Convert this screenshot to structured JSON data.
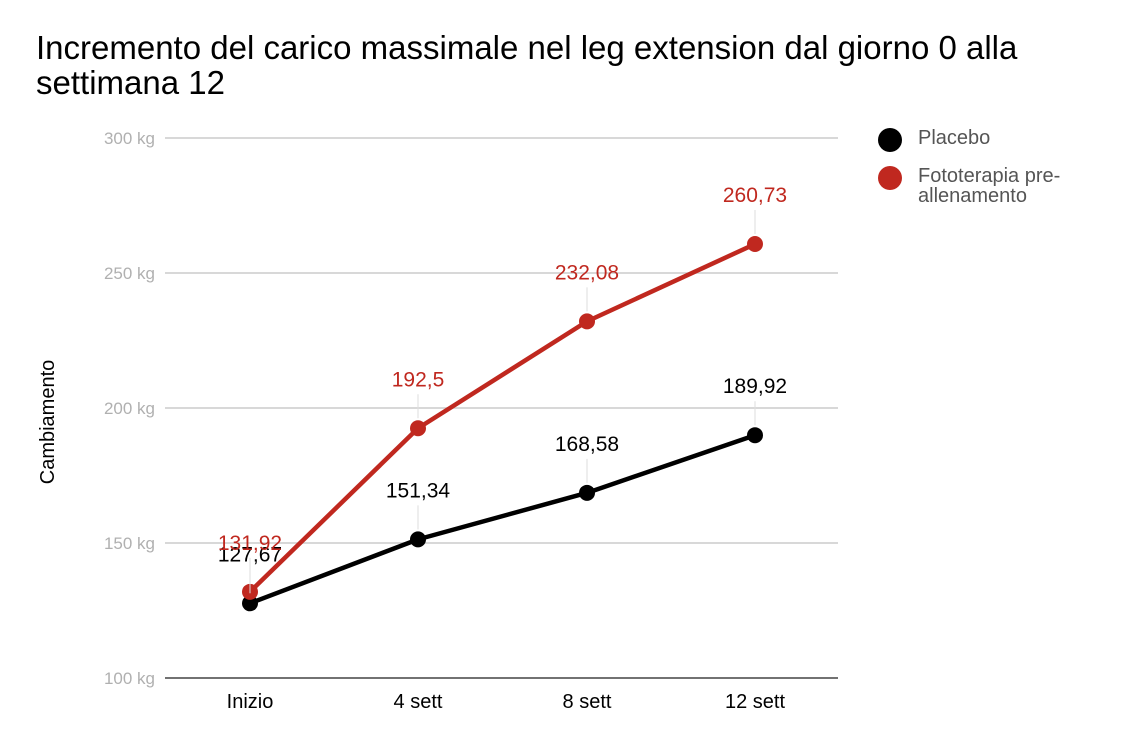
{
  "chart_data": {
    "type": "line",
    "title": "Incremento del carico massimale nel leg extension dal giorno 0 alla settimana 12",
    "xlabel": "",
    "ylabel": "Cambiamento",
    "categories": [
      "Inizio",
      "4 sett",
      "8 sett",
      "12 sett"
    ],
    "ylim": [
      100,
      300
    ],
    "yticks": [
      100,
      150,
      200,
      250,
      300
    ],
    "ytick_labels": [
      "100 kg",
      "150 kg",
      "200 kg",
      "250 kg",
      "300 kg"
    ],
    "grid": true,
    "legend_position": "right",
    "series": [
      {
        "name": "Placebo",
        "color": "#000000",
        "values": [
          127.67,
          151.34,
          168.58,
          189.92
        ],
        "labels": [
          "127,67",
          "151,34",
          "168,58",
          "189,92"
        ]
      },
      {
        "name": "Fototerapia pre-allenamento",
        "color": "#c0281f",
        "values": [
          131.92,
          192.5,
          232.08,
          260.73
        ],
        "labels": [
          "131,92",
          "192,5",
          "232,08",
          "260,73"
        ]
      }
    ]
  }
}
